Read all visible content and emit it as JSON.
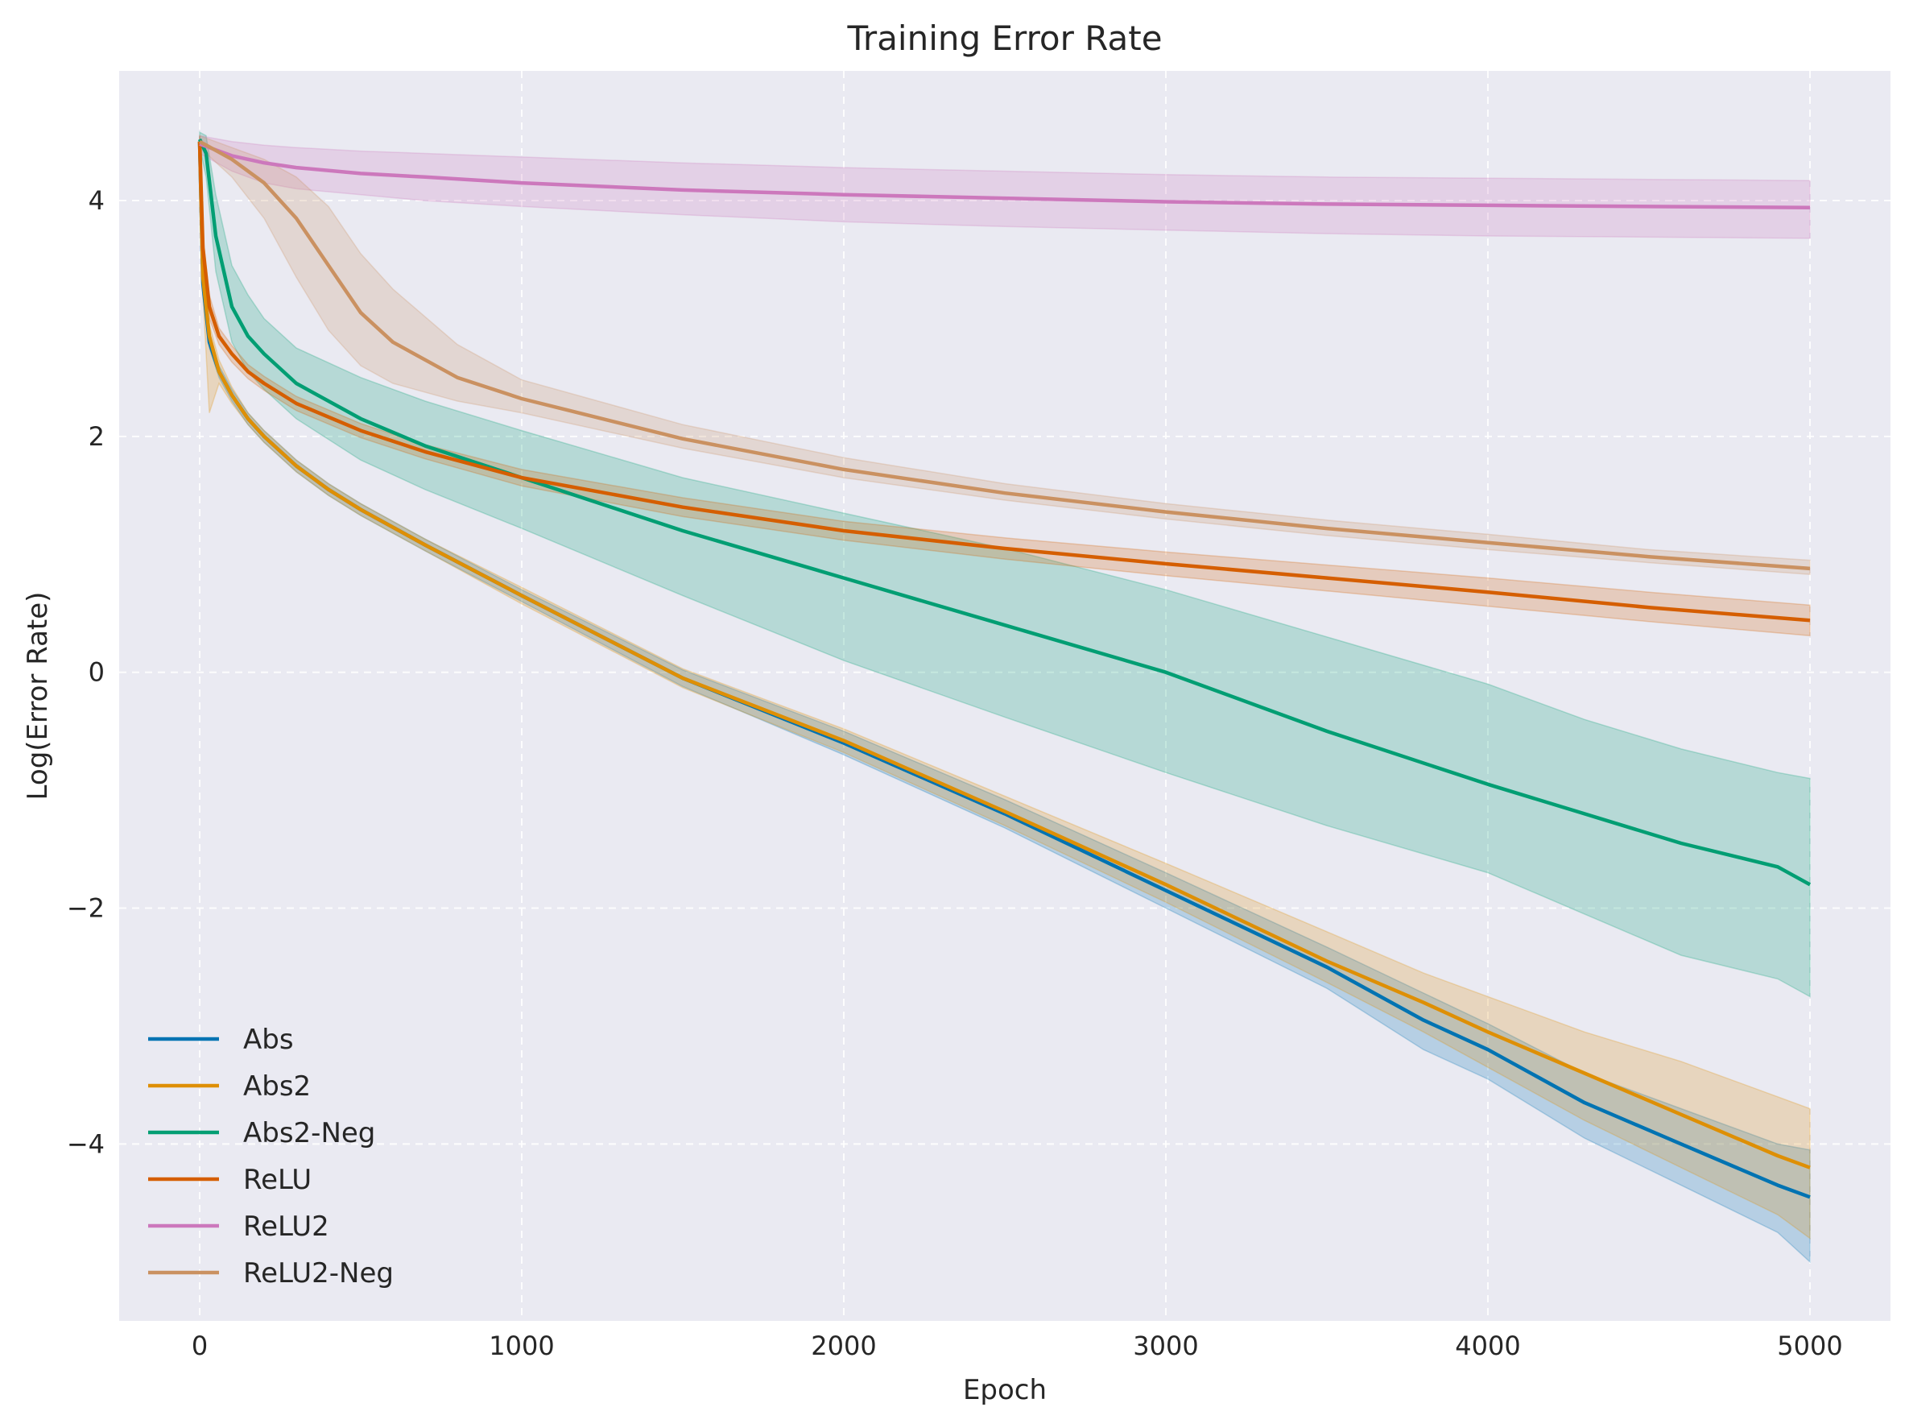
{
  "chart_data": {
    "type": "line",
    "title": "Training Error Rate",
    "xlabel": "Epoch",
    "ylabel": "Log(Error Rate)",
    "xlim": [
      -250,
      5250
    ],
    "ylim": [
      -5.5,
      5.1
    ],
    "xticks": [
      0,
      1000,
      2000,
      3000,
      4000,
      5000
    ],
    "xtick_labels": [
      "0",
      "1000",
      "2000",
      "3000",
      "4000",
      "5000"
    ],
    "yticks": [
      -4,
      -2,
      0,
      2,
      4
    ],
    "ytick_labels": [
      "−4",
      "−2",
      "0",
      "2",
      "4"
    ],
    "grid": true,
    "legend_position": "lower-left",
    "background": "#EAEAF2",
    "series": [
      {
        "name": "Abs",
        "color": "#0173B2",
        "x": [
          0,
          10,
          30,
          60,
          100,
          150,
          200,
          300,
          400,
          500,
          700,
          1000,
          1500,
          2000,
          2500,
          3000,
          3500,
          3800,
          4000,
          4300,
          4600,
          4900,
          5000
        ],
        "y": [
          4.5,
          3.3,
          2.8,
          2.55,
          2.35,
          2.15,
          2.0,
          1.75,
          1.55,
          1.38,
          1.08,
          0.65,
          -0.05,
          -0.6,
          -1.2,
          -1.85,
          -2.5,
          -2.95,
          -3.2,
          -3.65,
          -4.0,
          -4.35,
          -4.45
        ],
        "band_low": [
          4.45,
          3.2,
          2.75,
          2.5,
          2.3,
          2.1,
          1.95,
          1.7,
          1.5,
          1.33,
          1.03,
          0.6,
          -0.12,
          -0.7,
          -1.32,
          -2.0,
          -2.68,
          -3.2,
          -3.45,
          -3.95,
          -4.35,
          -4.75,
          -5.0
        ],
        "band_high": [
          4.55,
          3.4,
          2.85,
          2.6,
          2.4,
          2.2,
          2.05,
          1.8,
          1.6,
          1.43,
          1.13,
          0.7,
          0.02,
          -0.5,
          -1.08,
          -1.7,
          -2.33,
          -2.72,
          -2.98,
          -3.4,
          -3.7,
          -4.0,
          -4.05
        ]
      },
      {
        "name": "Abs2",
        "color": "#DE8F05",
        "x": [
          0,
          10,
          30,
          60,
          100,
          150,
          200,
          300,
          400,
          500,
          700,
          1000,
          1500,
          2000,
          2500,
          3000,
          3500,
          3800,
          4000,
          4300,
          4600,
          4900,
          5000
        ],
        "y": [
          4.5,
          3.35,
          2.85,
          2.55,
          2.35,
          2.15,
          2.0,
          1.75,
          1.55,
          1.38,
          1.08,
          0.65,
          -0.05,
          -0.58,
          -1.18,
          -1.8,
          -2.45,
          -2.8,
          -3.05,
          -3.4,
          -3.75,
          -4.1,
          -4.2
        ],
        "band_low": [
          4.45,
          3.2,
          2.2,
          2.45,
          2.28,
          2.1,
          1.95,
          1.7,
          1.5,
          1.33,
          1.03,
          0.58,
          -0.13,
          -0.68,
          -1.3,
          -1.95,
          -2.63,
          -3.05,
          -3.35,
          -3.8,
          -4.2,
          -4.6,
          -4.8
        ],
        "band_high": [
          4.55,
          3.5,
          2.95,
          2.65,
          2.42,
          2.2,
          2.05,
          1.8,
          1.6,
          1.43,
          1.13,
          0.72,
          0.03,
          -0.48,
          -1.05,
          -1.62,
          -2.2,
          -2.55,
          -2.75,
          -3.05,
          -3.3,
          -3.6,
          -3.7
        ]
      },
      {
        "name": "Abs2-Neg",
        "color": "#029E73",
        "x": [
          0,
          20,
          50,
          100,
          150,
          200,
          300,
          500,
          700,
          1000,
          1500,
          2000,
          2500,
          3000,
          3500,
          4000,
          4300,
          4600,
          4900,
          5000
        ],
        "y": [
          4.52,
          4.4,
          3.7,
          3.1,
          2.85,
          2.7,
          2.45,
          2.15,
          1.92,
          1.65,
          1.2,
          0.8,
          0.4,
          0.0,
          -0.5,
          -0.95,
          -1.2,
          -1.45,
          -1.65,
          -1.8
        ],
        "band_low": [
          4.45,
          4.2,
          3.4,
          2.8,
          2.55,
          2.4,
          2.15,
          1.8,
          1.55,
          1.22,
          0.65,
          0.1,
          -0.38,
          -0.85,
          -1.3,
          -1.7,
          -2.05,
          -2.4,
          -2.6,
          -2.75
        ],
        "band_high": [
          4.58,
          4.55,
          4.05,
          3.45,
          3.2,
          3.0,
          2.75,
          2.5,
          2.3,
          2.05,
          1.65,
          1.35,
          1.05,
          0.7,
          0.3,
          -0.1,
          -0.4,
          -0.65,
          -0.85,
          -0.9
        ]
      },
      {
        "name": "ReLU",
        "color": "#D55E00",
        "x": [
          0,
          10,
          30,
          60,
          100,
          150,
          200,
          300,
          500,
          700,
          1000,
          1500,
          2000,
          2500,
          3000,
          3500,
          4000,
          4500,
          5000
        ],
        "y": [
          4.5,
          3.6,
          3.1,
          2.85,
          2.7,
          2.55,
          2.45,
          2.28,
          2.05,
          1.87,
          1.65,
          1.4,
          1.2,
          1.05,
          0.92,
          0.8,
          0.68,
          0.55,
          0.44
        ],
        "band_low": [
          4.45,
          3.5,
          3.0,
          2.78,
          2.63,
          2.49,
          2.39,
          2.22,
          1.99,
          1.81,
          1.58,
          1.32,
          1.12,
          0.96,
          0.82,
          0.69,
          0.56,
          0.43,
          0.31
        ],
        "band_high": [
          4.55,
          3.7,
          3.2,
          2.92,
          2.77,
          2.61,
          2.51,
          2.34,
          2.11,
          1.93,
          1.72,
          1.48,
          1.28,
          1.14,
          1.02,
          0.91,
          0.8,
          0.68,
          0.57
        ]
      },
      {
        "name": "ReLU2",
        "color": "#CC78BC",
        "x": [
          0,
          100,
          200,
          300,
          500,
          700,
          1000,
          1500,
          2000,
          2500,
          3000,
          3500,
          4000,
          4500,
          5000
        ],
        "y": [
          4.48,
          4.38,
          4.32,
          4.28,
          4.23,
          4.2,
          4.15,
          4.09,
          4.05,
          4.02,
          3.99,
          3.97,
          3.96,
          3.95,
          3.94
        ],
        "band_low": [
          4.4,
          4.25,
          4.15,
          4.1,
          4.05,
          4.0,
          3.95,
          3.88,
          3.82,
          3.78,
          3.75,
          3.72,
          3.7,
          3.69,
          3.68
        ],
        "band_high": [
          4.55,
          4.5,
          4.47,
          4.45,
          4.42,
          4.4,
          4.37,
          4.32,
          4.28,
          4.25,
          4.22,
          4.2,
          4.19,
          4.18,
          4.17
        ]
      },
      {
        "name": "ReLU2-Neg",
        "color": "#CA9161",
        "x": [
          0,
          100,
          200,
          300,
          400,
          500,
          600,
          800,
          1000,
          1500,
          2000,
          2500,
          3000,
          3500,
          4000,
          4500,
          5000
        ],
        "y": [
          4.5,
          4.35,
          4.15,
          3.85,
          3.45,
          3.05,
          2.8,
          2.5,
          2.32,
          1.98,
          1.72,
          1.52,
          1.36,
          1.22,
          1.1,
          0.98,
          0.88
        ],
        "band_low": [
          4.45,
          4.2,
          3.85,
          3.35,
          2.9,
          2.6,
          2.45,
          2.3,
          2.2,
          1.9,
          1.65,
          1.46,
          1.3,
          1.16,
          1.04,
          0.93,
          0.83
        ],
        "band_high": [
          4.55,
          4.45,
          4.35,
          4.2,
          3.95,
          3.55,
          3.25,
          2.78,
          2.48,
          2.1,
          1.82,
          1.6,
          1.43,
          1.29,
          1.17,
          1.04,
          0.95
        ]
      }
    ]
  }
}
